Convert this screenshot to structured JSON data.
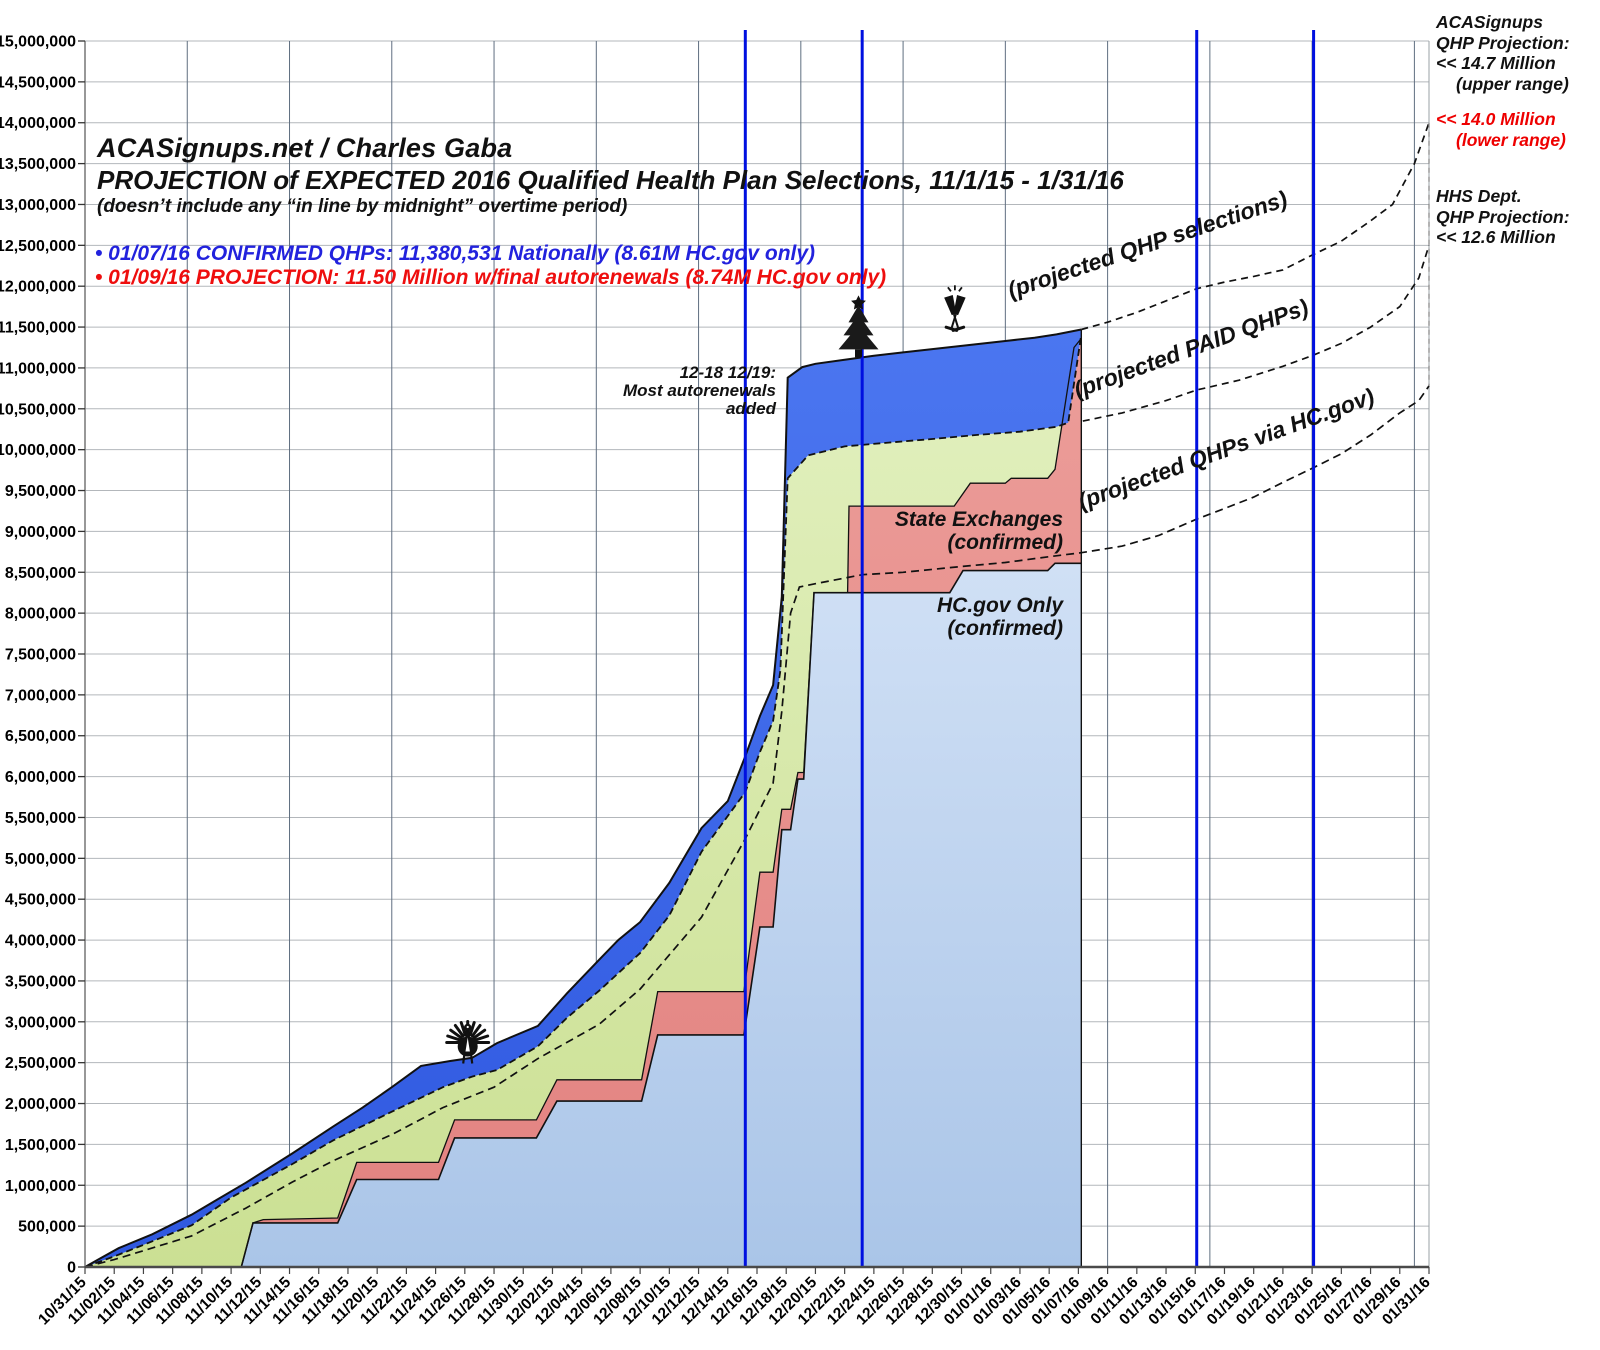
{
  "header": {
    "site": "ACASignups.net / Charles Gaba",
    "title": "PROJECTION of EXPECTED 2016 Qualified Health Plan Selections, 11/1/15 - 1/31/16",
    "subtitle": "(doesn’t include any “in line by midnight” overtime period)",
    "bullet_confirmed": "• 01/07/16 CONFIRMED QHPs: 11,380,531 Nationally (8.61M HC.gov only)",
    "bullet_projection": "• 01/09/16 PROJECTION: 11.50 Million w/final autorenewals (8.74M HC.gov only)"
  },
  "side_labels": {
    "acasignups": [
      "ACASignups",
      "QHP Projection:",
      "<< 14.7 Million",
      "(upper range)"
    ],
    "lower_range": [
      "<< 14.0 Million",
      "(lower range)"
    ],
    "hhs": [
      "HHS Dept.",
      "QHP Projection:",
      "<< 12.6 Million"
    ]
  },
  "annotations": {
    "autorenewals": [
      "12-18 12/19:",
      "Most autorenewals",
      "added"
    ],
    "state_exchanges": [
      "State Exchanges",
      "(confirmed)"
    ],
    "hcgov_only": [
      "HC.gov Only",
      "(confirmed)"
    ]
  },
  "colors": {
    "total_area": "#3a67ed",
    "paid_area_top": "#e2f0bf",
    "paid_area_bottom": "#cbe093",
    "state_area_top": "#ec9d99",
    "state_area_bottom": "#e28280",
    "hcgov_area_top": "#d0e0f5",
    "hcgov_area_bottom": "#aac5e8",
    "deadline_line": "#0010e0",
    "grid_h": "#b3b7bb",
    "grid_v": "#5f6e80",
    "axis": "#4a4a4a",
    "dashed": "#111111"
  },
  "chart_data": {
    "type": "area",
    "title": "PROJECTION of EXPECTED 2016 Qualified Health Plan Selections, 11/1/15 - 1/31/16",
    "x_start_date": "10/31/15",
    "x_range_days": 92,
    "x_tick_labels": [
      "10/31/15",
      "11/02/15",
      "11/04/15",
      "11/06/15",
      "11/08/15",
      "11/10/15",
      "11/12/15",
      "11/14/15",
      "11/16/15",
      "11/18/15",
      "11/20/15",
      "11/22/15",
      "11/24/15",
      "11/26/15",
      "11/28/15",
      "11/30/15",
      "12/02/15",
      "12/04/15",
      "12/06/15",
      "12/08/15",
      "12/10/15",
      "12/12/15",
      "12/14/15",
      "12/16/15",
      "12/18/15",
      "12/20/15",
      "12/22/15",
      "12/24/15",
      "12/26/15",
      "12/28/15",
      "12/30/15",
      "01/01/16",
      "01/03/16",
      "01/05/16",
      "01/07/16",
      "01/09/16",
      "01/11/16",
      "01/13/16",
      "01/15/16",
      "01/17/16",
      "01/19/16",
      "01/21/16",
      "01/23/16",
      "01/25/16",
      "01/27/16",
      "01/29/16",
      "01/31/16"
    ],
    "y_axis": {
      "min": 0,
      "max_millions": 15,
      "step_millions": 0.5
    },
    "weekly_gridline_days": [
      7,
      14,
      21,
      28,
      35,
      42,
      49,
      56,
      63,
      70,
      77,
      84,
      91
    ],
    "deadline_days": [
      45.2,
      53.2,
      76.1,
      84.1
    ],
    "series": [
      {
        "name": "HC.gov Only (confirmed)",
        "points": [
          [
            0,
            0
          ],
          [
            10.7,
            0
          ],
          [
            11.5,
            0.54
          ],
          [
            17.3,
            0.54
          ],
          [
            18.6,
            1.07
          ],
          [
            24.2,
            1.07
          ],
          [
            25.3,
            1.58
          ],
          [
            30.9,
            1.58
          ],
          [
            32.3,
            2.03
          ],
          [
            38.1,
            2.03
          ],
          [
            39.2,
            2.84
          ],
          [
            45.1,
            2.84
          ],
          [
            46.2,
            4.16
          ],
          [
            47.1,
            4.16
          ],
          [
            47.7,
            5.35
          ],
          [
            48.3,
            5.35
          ],
          [
            48.8,
            5.97
          ],
          [
            49.2,
            5.97
          ],
          [
            49.9,
            8.25
          ],
          [
            59.2,
            8.25
          ],
          [
            60.1,
            8.52
          ],
          [
            65.9,
            8.52
          ],
          [
            66.4,
            8.61
          ],
          [
            68.2,
            8.61
          ]
        ]
      },
      {
        "name": "State Exchanges (confirmed)",
        "points": [
          [
            0,
            0
          ],
          [
            10.7,
            0
          ],
          [
            11.5,
            0.54
          ],
          [
            12.2,
            0.58
          ],
          [
            17.3,
            0.6
          ],
          [
            18.6,
            1.28
          ],
          [
            24.2,
            1.28
          ],
          [
            25.3,
            1.8
          ],
          [
            30.9,
            1.8
          ],
          [
            32.3,
            2.29
          ],
          [
            38.1,
            2.29
          ],
          [
            39.2,
            3.37
          ],
          [
            45.1,
            3.37
          ],
          [
            46.2,
            4.83
          ],
          [
            47.1,
            4.83
          ],
          [
            47.7,
            5.6
          ],
          [
            48.3,
            5.6
          ],
          [
            48.8,
            6.05
          ],
          [
            49.2,
            6.05
          ],
          [
            49.9,
            8.25
          ],
          [
            52.2,
            8.25
          ],
          [
            52.3,
            9.31
          ],
          [
            59.5,
            9.31
          ],
          [
            60.6,
            9.59
          ],
          [
            63,
            9.59
          ],
          [
            63.4,
            9.65
          ],
          [
            65.9,
            9.65
          ],
          [
            66.4,
            9.76
          ],
          [
            67.7,
            11.25
          ],
          [
            68.2,
            11.36
          ]
        ]
      },
      {
        "name": "Projected PAID QHPs",
        "points": [
          [
            0,
            0
          ],
          [
            2,
            0.13
          ],
          [
            4,
            0.27
          ],
          [
            7.3,
            0.51
          ],
          [
            10,
            0.85
          ],
          [
            14.2,
            1.26
          ],
          [
            17,
            1.55
          ],
          [
            21,
            1.9
          ],
          [
            24.5,
            2.2
          ],
          [
            26.5,
            2.33
          ],
          [
            28.2,
            2.41
          ],
          [
            31,
            2.7
          ],
          [
            33,
            3.05
          ],
          [
            35.2,
            3.38
          ],
          [
            38,
            3.84
          ],
          [
            40,
            4.3
          ],
          [
            42.2,
            5.08
          ],
          [
            45.2,
            5.81
          ],
          [
            46.2,
            6.3
          ],
          [
            47.1,
            6.68
          ],
          [
            47.6,
            7.3
          ],
          [
            48.1,
            9.65
          ],
          [
            49.5,
            9.93
          ],
          [
            52,
            10.04
          ],
          [
            54.6,
            10.08
          ],
          [
            58,
            10.13
          ],
          [
            61,
            10.18
          ],
          [
            64,
            10.22
          ],
          [
            66.5,
            10.28
          ],
          [
            67.3,
            10.33
          ],
          [
            68.2,
            11.41
          ]
        ]
      },
      {
        "name": "Projected QHP selections (total)",
        "points": [
          [
            0,
            0
          ],
          [
            1,
            0.1
          ],
          [
            2.3,
            0.23
          ],
          [
            4.6,
            0.4
          ],
          [
            7.3,
            0.64
          ],
          [
            9,
            0.82
          ],
          [
            11,
            1.03
          ],
          [
            14.2,
            1.39
          ],
          [
            17,
            1.72
          ],
          [
            19,
            1.95
          ],
          [
            21,
            2.2
          ],
          [
            23,
            2.46
          ],
          [
            25,
            2.52
          ],
          [
            26.5,
            2.56
          ],
          [
            28.2,
            2.74
          ],
          [
            31,
            2.95
          ],
          [
            33,
            3.35
          ],
          [
            35.2,
            3.76
          ],
          [
            36.5,
            4.0
          ],
          [
            38,
            4.22
          ],
          [
            40,
            4.7
          ],
          [
            42.2,
            5.37
          ],
          [
            44,
            5.7
          ],
          [
            45.2,
            6.25
          ],
          [
            46.2,
            6.74
          ],
          [
            47.1,
            7.12
          ],
          [
            47.7,
            8.2
          ],
          [
            48.1,
            10.88
          ],
          [
            49.1,
            11.01
          ],
          [
            50,
            11.05
          ],
          [
            52,
            11.1
          ],
          [
            54,
            11.15
          ],
          [
            56,
            11.19
          ],
          [
            59,
            11.25
          ],
          [
            61,
            11.29
          ],
          [
            63,
            11.33
          ],
          [
            65,
            11.37
          ],
          [
            66.5,
            11.41
          ],
          [
            68.2,
            11.47
          ]
        ]
      }
    ],
    "hcgov_projection_dashed": {
      "name": "QHPs via HC.gov (actual + projected)",
      "points": [
        [
          0,
          0
        ],
        [
          2,
          0.09
        ],
        [
          4,
          0.2
        ],
        [
          7.3,
          0.38
        ],
        [
          11,
          0.72
        ],
        [
          14.2,
          1.04
        ],
        [
          17,
          1.3
        ],
        [
          21,
          1.62
        ],
        [
          24.5,
          1.95
        ],
        [
          28,
          2.2
        ],
        [
          31,
          2.55
        ],
        [
          35.2,
          2.97
        ],
        [
          38,
          3.4
        ],
        [
          42.2,
          4.28
        ],
        [
          45.2,
          5.24
        ],
        [
          47.1,
          5.92
        ],
        [
          47.7,
          6.8
        ],
        [
          48.3,
          8.0
        ],
        [
          48.9,
          8.32
        ],
        [
          50,
          8.36
        ],
        [
          53.2,
          8.47
        ],
        [
          56,
          8.5
        ],
        [
          60,
          8.57
        ],
        [
          63,
          8.62
        ],
        [
          66,
          8.69
        ],
        [
          68.2,
          8.74
        ],
        [
          71,
          8.82
        ],
        [
          73.5,
          8.95
        ],
        [
          76.1,
          9.15
        ],
        [
          78,
          9.28
        ],
        [
          80,
          9.42
        ],
        [
          82,
          9.6
        ],
        [
          84.1,
          9.78
        ],
        [
          86,
          9.95
        ],
        [
          88,
          10.18
        ],
        [
          90,
          10.45
        ],
        [
          91.3,
          10.6
        ],
        [
          92,
          10.78
        ]
      ]
    },
    "projections": [
      {
        "label": "(projected QHP selections)",
        "label_day": 72.9,
        "label_value": 12.42,
        "label_angle": -18.5,
        "points": [
          [
            68.2,
            11.47
          ],
          [
            70,
            11.56
          ],
          [
            72,
            11.68
          ],
          [
            74,
            11.82
          ],
          [
            76.1,
            11.97
          ],
          [
            78,
            12.05
          ],
          [
            80,
            12.12
          ],
          [
            82,
            12.2
          ],
          [
            84,
            12.38
          ],
          [
            86,
            12.55
          ],
          [
            88,
            12.8
          ],
          [
            89.5,
            13.0
          ],
          [
            91,
            13.5
          ],
          [
            92,
            14.0
          ]
        ]
      },
      {
        "label": "(projected PAID QHPs)",
        "label_day": 75.9,
        "label_value": 11.15,
        "label_angle": -20,
        "points": [
          [
            68.3,
            10.35
          ],
          [
            71,
            10.45
          ],
          [
            74,
            10.6
          ],
          [
            76.1,
            10.73
          ],
          [
            79,
            10.85
          ],
          [
            82,
            11.02
          ],
          [
            84,
            11.15
          ],
          [
            86,
            11.3
          ],
          [
            88,
            11.5
          ],
          [
            90,
            11.75
          ],
          [
            91.3,
            12.1
          ],
          [
            92,
            12.5
          ]
        ]
      },
      {
        "label": "(projected QHPs via HC.gov)",
        "label_day": 78.3,
        "label_value": 9.92,
        "label_angle": -20,
        "points": []
      }
    ],
    "projection_endpoints": {
      "top_millions": 14.0,
      "mid_millions": 12.5,
      "bottom_millions": 10.78
    },
    "icons": [
      {
        "name": "turkey-icon",
        "day": 26.2,
        "value": 2.82
      },
      {
        "name": "christmas-tree-icon",
        "day": 52.95,
        "value": 11.3
      },
      {
        "name": "champagne-glasses-icon",
        "day": 59.55,
        "value": 11.62
      }
    ]
  }
}
